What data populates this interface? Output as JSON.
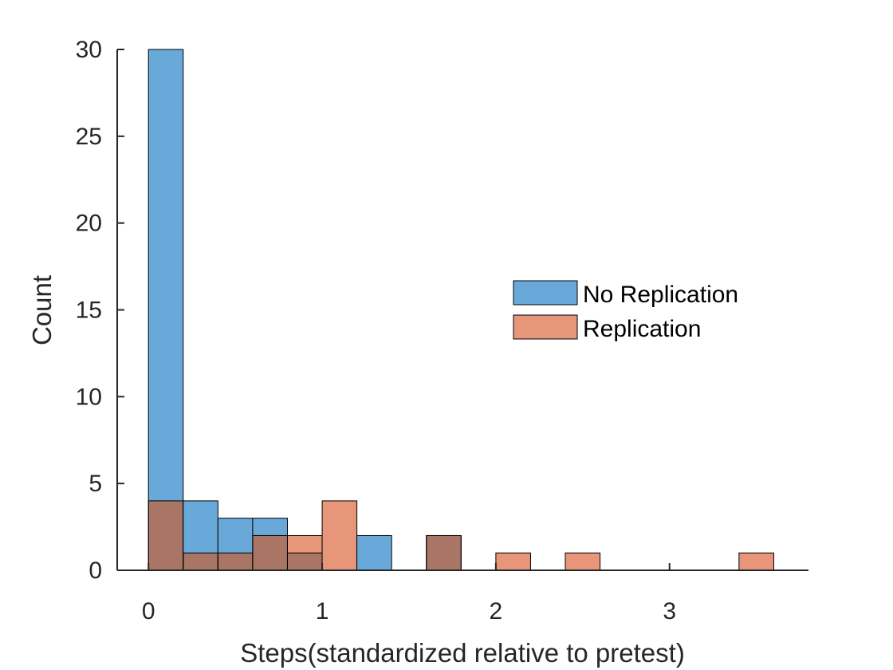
{
  "chart_data": {
    "type": "bar",
    "subtype": "overlaid-histogram",
    "title": "",
    "xlabel": "Steps(standardized relative to pretest)",
    "ylabel": "Count",
    "xlim": [
      -0.18,
      3.8
    ],
    "ylim": [
      0,
      30
    ],
    "xticks": [
      0,
      1,
      2,
      3
    ],
    "xtick_labels": [
      "0",
      "1",
      "2",
      "3"
    ],
    "yticks": [
      0,
      5,
      10,
      15,
      20,
      25,
      30
    ],
    "ytick_labels": [
      "0",
      "5",
      "10",
      "15",
      "20",
      "25",
      "30"
    ],
    "bin_edges": [
      0,
      0.2,
      0.4,
      0.6,
      0.8,
      1.0,
      1.2,
      1.4,
      1.6,
      1.8,
      2.0,
      2.2,
      2.4,
      2.6,
      2.8,
      3.0,
      3.2,
      3.4,
      3.6
    ],
    "series": [
      {
        "name": "No Replication",
        "color": "#0072BD",
        "face_color": "#68A9DA",
        "counts": [
          30,
          4,
          3,
          3,
          1,
          0,
          2,
          0,
          2,
          0,
          0,
          0,
          0,
          0,
          0,
          0,
          0,
          0
        ]
      },
      {
        "name": "Replication",
        "color": "#D95319",
        "face_color": "#E8967A",
        "counts": [
          4,
          1,
          1,
          2,
          2,
          4,
          0,
          0,
          2,
          0,
          1,
          0,
          1,
          0,
          0,
          0,
          0,
          1
        ]
      }
    ],
    "overlap_color": "#A97565",
    "legend": [
      "No Replication",
      "Replication"
    ],
    "legend_position": "center-right",
    "grid": false
  }
}
